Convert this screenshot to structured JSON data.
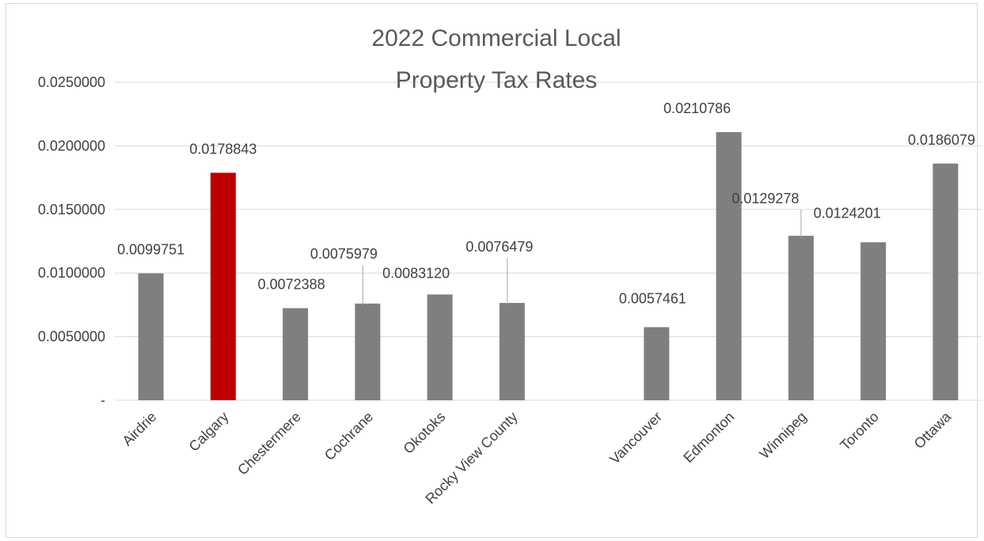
{
  "chart_data": {
    "type": "bar",
    "title": [
      "2022 Commercial Local",
      "Property Tax Rates"
    ],
    "categories": [
      "Airdrie",
      "Calgary",
      "Chestermere",
      "Cochrane",
      "Okotoks",
      "Rocky View County",
      "",
      "Vancouver",
      "Edmonton",
      "Winnipeg",
      "Toronto",
      "Ottawa"
    ],
    "values": [
      0.0099751,
      0.0178843,
      0.0072388,
      0.0075979,
      0.008312,
      0.0076479,
      null,
      0.0057461,
      0.0210786,
      0.0129278,
      0.0124201,
      0.0186079
    ],
    "data_labels": [
      "0.0099751",
      "0.0178843",
      "0.0072388",
      "0.0075979",
      "0.0083120",
      "0.0076479",
      "",
      "0.0057461",
      "0.0210786",
      "0.0129278",
      "0.0124201",
      "0.0186079"
    ],
    "y_ticks": [
      {
        "value": 0,
        "label": "-"
      },
      {
        "value": 0.005,
        "label": "0.0050000"
      },
      {
        "value": 0.01,
        "label": "0.0100000"
      },
      {
        "value": 0.015,
        "label": "0.0150000"
      },
      {
        "value": 0.02,
        "label": "0.0200000"
      },
      {
        "value": 0.025,
        "label": "0.0250000"
      }
    ],
    "ylim": [
      0,
      0.025
    ],
    "grid": true,
    "legend": "none",
    "colors": {
      "default": "#7f7f7f",
      "highlight": "#c00000",
      "grid": "#d9d9d9",
      "text": "#404040"
    },
    "highlight_category": "Calgary"
  }
}
